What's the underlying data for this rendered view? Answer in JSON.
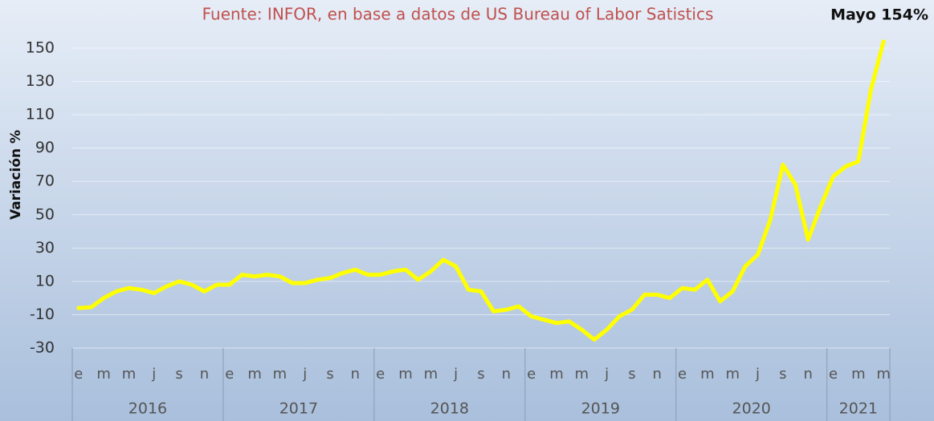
{
  "chart_data": {
    "type": "line",
    "subtitle": "Fuente: INFOR, en base a datos de US Bureau of Labor Satistics",
    "annotation": "Mayo 154%",
    "y_label": "Variación %",
    "categories": [
      "e",
      null,
      "m",
      null,
      "m",
      null,
      "j",
      null,
      "s",
      null,
      "n",
      null,
      "e",
      null,
      "m",
      null,
      "m",
      null,
      "j",
      null,
      "s",
      null,
      "n",
      null,
      "e",
      null,
      "m",
      null,
      "m",
      null,
      "j",
      null,
      "s",
      null,
      "n",
      null,
      "e",
      null,
      "m",
      null,
      "m",
      null,
      "j",
      null,
      "s",
      null,
      "n",
      null,
      "e",
      null,
      "m",
      null,
      "m",
      null,
      "j",
      null,
      "s",
      null,
      "n",
      null,
      "e",
      null,
      "m",
      null,
      "m"
    ],
    "years": [
      "2016",
      "2017",
      "2018",
      "2019",
      "2020",
      "2021"
    ],
    "series": [
      {
        "name": "Variación %",
        "color": "#ffff00",
        "values": [
          -6,
          -5.5,
          0,
          4,
          6,
          5,
          3,
          7,
          10,
          8,
          4,
          8,
          8,
          14,
          13,
          14,
          13,
          9,
          9,
          11,
          12,
          15,
          17,
          14,
          14,
          16,
          17,
          11,
          16,
          23,
          19,
          5,
          4,
          -8,
          -7,
          -5,
          -11,
          -13,
          -15,
          -14,
          -19,
          -25,
          -19,
          -11,
          -7,
          2,
          2,
          0,
          6,
          5,
          11,
          -2,
          4,
          19,
          26,
          47,
          80,
          68,
          35,
          55,
          73,
          79,
          82,
          125,
          154
        ]
      }
    ],
    "ylim": [
      -30,
      160
    ],
    "yticks": [
      -30,
      -10,
      10,
      30,
      50,
      70,
      90,
      110,
      130,
      150
    ],
    "grid": true
  }
}
